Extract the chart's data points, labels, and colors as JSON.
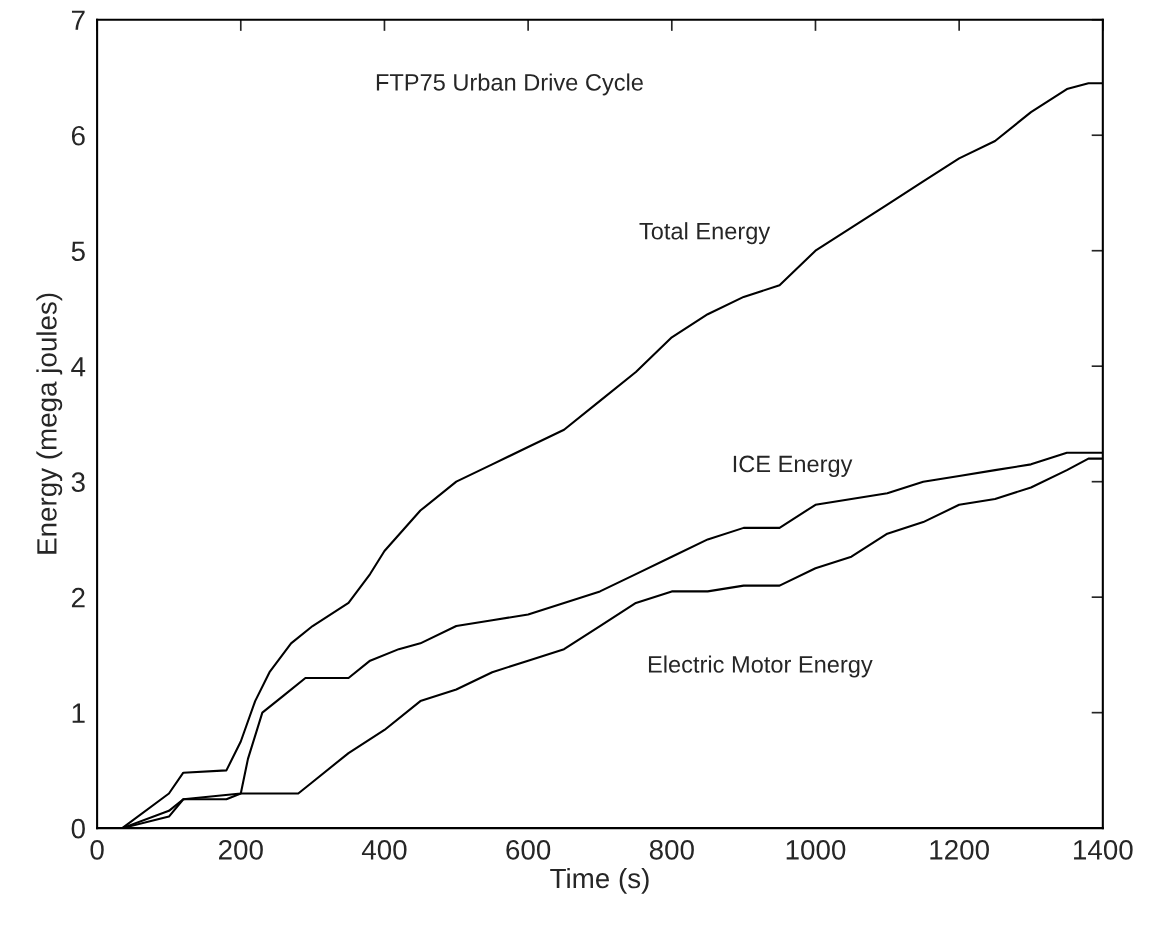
{
  "chart_data": {
    "type": "line",
    "title": "FTP75 Urban Drive Cycle",
    "xlabel": "Time (s)",
    "ylabel": "Energy (mega joules)",
    "xlim": [
      0,
      1400
    ],
    "xticks": [
      0,
      200,
      400,
      600,
      800,
      1000,
      1200,
      1400
    ],
    "ylim": [
      0,
      7
    ],
    "yticks": [
      0,
      1,
      2,
      3,
      4,
      5,
      6,
      7
    ],
    "grid": false,
    "series": [
      {
        "color": "#000000",
        "x": [
          35,
          100,
          120,
          180,
          200,
          220,
          240,
          270,
          300,
          350,
          380,
          400,
          450,
          500,
          550,
          600,
          650,
          700,
          750,
          800,
          850,
          900,
          950,
          1000,
          1050,
          1100,
          1150,
          1200,
          1250,
          1300,
          1350,
          1380,
          1400
        ],
        "values": [
          0,
          0.3,
          0.48,
          0.5,
          0.75,
          1.1,
          1.35,
          1.6,
          1.75,
          1.95,
          2.2,
          2.4,
          2.75,
          3.0,
          3.15,
          3.3,
          3.45,
          3.7,
          3.95,
          4.25,
          4.45,
          4.6,
          4.7,
          5.0,
          5.2,
          5.4,
          5.6,
          5.8,
          5.95,
          6.2,
          6.4,
          6.45,
          6.45
        ]
      },
      {
        "color": "#000000",
        "x": [
          35,
          100,
          120,
          200,
          210,
          230,
          260,
          290,
          350,
          380,
          420,
          450,
          500,
          550,
          600,
          650,
          700,
          750,
          800,
          850,
          900,
          950,
          1000,
          1050,
          1100,
          1150,
          1200,
          1250,
          1300,
          1350,
          1400
        ],
        "values": [
          0,
          0.15,
          0.25,
          0.3,
          0.6,
          1.0,
          1.15,
          1.3,
          1.3,
          1.45,
          1.55,
          1.6,
          1.75,
          1.8,
          1.85,
          1.95,
          2.05,
          2.2,
          2.35,
          2.5,
          2.6,
          2.6,
          2.8,
          2.85,
          2.9,
          3.0,
          3.05,
          3.1,
          3.15,
          3.25,
          3.25
        ]
      },
      {
        "color": "#000000",
        "x": [
          35,
          100,
          120,
          180,
          200,
          280,
          300,
          350,
          400,
          450,
          500,
          550,
          600,
          650,
          700,
          750,
          800,
          850,
          900,
          950,
          1000,
          1050,
          1100,
          1150,
          1200,
          1250,
          1300,
          1350,
          1380,
          1400
        ],
        "values": [
          0,
          0.1,
          0.25,
          0.25,
          0.3,
          0.3,
          0.4,
          0.65,
          0.85,
          1.1,
          1.2,
          1.35,
          1.45,
          1.55,
          1.75,
          1.95,
          2.05,
          2.05,
          2.1,
          2.1,
          2.25,
          2.35,
          2.55,
          2.65,
          2.8,
          2.85,
          2.95,
          3.1,
          3.2,
          3.2
        ]
      }
    ],
    "annotations": [
      "Total Energy",
      "ICE Energy",
      "Electric Motor Energy"
    ]
  }
}
